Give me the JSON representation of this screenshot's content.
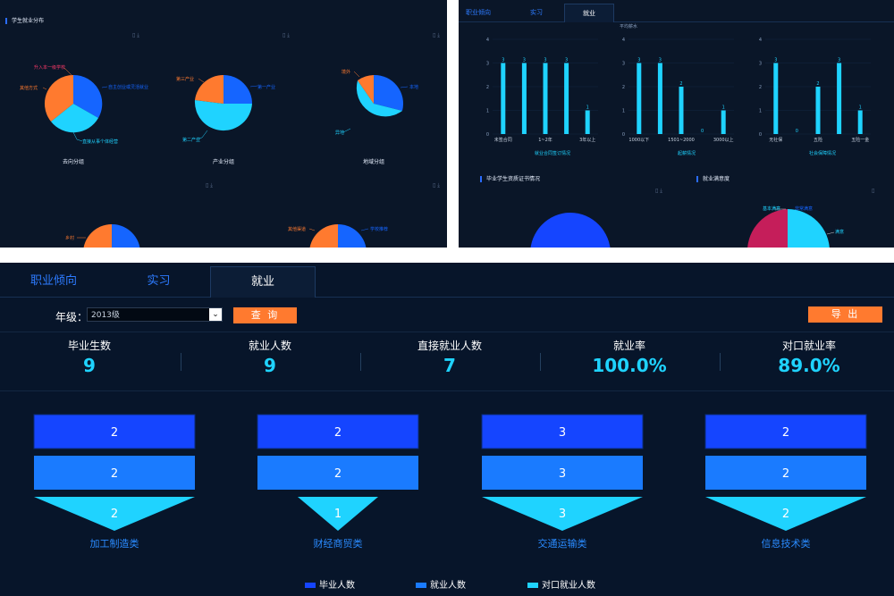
{
  "top_left": {
    "title": "学生就业分布",
    "toolbar_icons": [
      "document-icon",
      "download-icon"
    ],
    "pies": [
      {
        "label": "去向分组",
        "slices": [
          {
            "name": "升入本一级学校",
            "value": 0.25,
            "color": "#ff7a2f"
          },
          {
            "name": "自主创业或灵活就业",
            "value": 0.33,
            "color": "#1565ff"
          },
          {
            "name": "直接从事个体经营",
            "value": 0.34,
            "color": "#1fd3ff"
          },
          {
            "name": "其他方式",
            "value": 0.08,
            "color": "#ff7a2f"
          }
        ]
      },
      {
        "label": "产业分组",
        "slices": [
          {
            "name": "第一产业",
            "value": 0.25,
            "color": "#1565ff"
          },
          {
            "name": "第二产业",
            "value": 0.5,
            "color": "#1fd3ff"
          },
          {
            "name": "第三产业",
            "value": 0.25,
            "color": "#ff7a2f"
          }
        ]
      },
      {
        "label": "地域分组",
        "slices": [
          {
            "name": "本地",
            "value": 0.33,
            "color": "#1565ff"
          },
          {
            "name": "异地",
            "value": 0.55,
            "color": "#1fd3ff"
          },
          {
            "name": "境外",
            "value": 0.12,
            "color": "#ff7a2f"
          }
        ]
      }
    ],
    "pies_row2": [
      {
        "slices": [
          {
            "name": "乡村",
            "color": "#ff7a2f"
          }
        ]
      },
      {
        "slices": [
          {
            "name": "其他渠道",
            "color": "#ff7a2f"
          },
          {
            "name": "学校推荐",
            "color": "#1565ff"
          }
        ]
      }
    ]
  },
  "top_right": {
    "tabs": [
      "职业倾向",
      "实习",
      "就业"
    ],
    "active_tab": "就业",
    "charts": [
      {
        "caption": "就业合同签订情况",
        "categories": [
          "未签合同",
          "1~2年",
          "3年以上"
        ],
        "values": [
          3,
          3,
          3,
          3,
          1
        ],
        "ylim": [
          0,
          4
        ],
        "yticks": [
          "4",
          "3",
          "2",
          "1",
          "0"
        ]
      },
      {
        "caption": "起薪情况",
        "unit_label": "平均薪水",
        "categories": [
          "1000以下",
          "1501~2000",
          "3000以上"
        ],
        "values": [
          3,
          3,
          2,
          0,
          1
        ],
        "ylim": [
          0,
          4
        ],
        "yticks": [
          "4",
          "3",
          "2",
          "1",
          "0"
        ]
      },
      {
        "caption": "社会保障情况",
        "categories": [
          "无社保",
          "五险",
          "五险一金"
        ],
        "values": [
          3,
          0,
          2,
          3,
          1
        ],
        "ylim": [
          0,
          4
        ],
        "yticks": [
          "4",
          "3",
          "2",
          "1",
          "0"
        ]
      }
    ],
    "section2_title": "毕业学生资质证书情况",
    "section3_title": "就业满意度",
    "satisfaction_labels": [
      "基本满意",
      "非常满意",
      "满意"
    ]
  },
  "main": {
    "tabs": [
      "职业倾向",
      "实习",
      "就业"
    ],
    "active_tab": "就业",
    "grade_label": "年级：",
    "grade_value": "2013级",
    "query_button": "查 询",
    "export_button": "导 出",
    "stats": [
      {
        "label": "毕业生数",
        "value": "9"
      },
      {
        "label": "就业人数",
        "value": "9"
      },
      {
        "label": "直接就业人数",
        "value": "7"
      },
      {
        "label": "就业率",
        "value": "100.0%"
      },
      {
        "label": "对口就业率",
        "value": "89.0%"
      }
    ],
    "funnels": [
      {
        "category": "加工制造类",
        "graduates": "2",
        "employed": "2",
        "matched": "2"
      },
      {
        "category": "财经商贸类",
        "graduates": "2",
        "employed": "2",
        "matched": "1"
      },
      {
        "category": "交通运输类",
        "graduates": "3",
        "employed": "3",
        "matched": "3"
      },
      {
        "category": "信息技术类",
        "graduates": "2",
        "employed": "2",
        "matched": "2"
      }
    ],
    "legend": [
      {
        "label": "毕业人数",
        "color": "#1545ff"
      },
      {
        "label": "就业人数",
        "color": "#1a7bff"
      },
      {
        "label": "对口就业人数",
        "color": "#1fd3ff"
      }
    ]
  }
}
